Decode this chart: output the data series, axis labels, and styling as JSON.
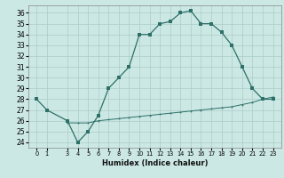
{
  "xlabel": "Humidex (Indice chaleur)",
  "bg_color": "#cce8e4",
  "line_color": "#2d7068",
  "grid_color": "#aaccc8",
  "upper_x": [
    0,
    1,
    3,
    4,
    5,
    6,
    7,
    8,
    9,
    10,
    11,
    12,
    13,
    14,
    15,
    16,
    17,
    18,
    19,
    20,
    21,
    22,
    23
  ],
  "upper_y": [
    28,
    27,
    26,
    24,
    25,
    26.5,
    29,
    30,
    31,
    34,
    34,
    35,
    35.2,
    36,
    36.2,
    35,
    35,
    34.2,
    33,
    31,
    29,
    28,
    28
  ],
  "lower_x": [
    3,
    4,
    5,
    6,
    7,
    8,
    9,
    10,
    11,
    12,
    13,
    14,
    15,
    16,
    17,
    18,
    19,
    20,
    21,
    22,
    23
  ],
  "lower_y": [
    25.8,
    25.8,
    25.8,
    26.0,
    26.1,
    26.2,
    26.3,
    26.4,
    26.5,
    26.6,
    26.7,
    26.8,
    26.9,
    27.0,
    27.1,
    27.2,
    27.3,
    27.5,
    27.7,
    28.0,
    28.2
  ],
  "ylim": [
    23.5,
    36.7
  ],
  "yticks": [
    24,
    25,
    26,
    27,
    28,
    29,
    30,
    31,
    32,
    33,
    34,
    35,
    36
  ],
  "xlim": [
    -0.8,
    23.8
  ],
  "xticks": [
    0,
    1,
    3,
    4,
    5,
    6,
    7,
    8,
    9,
    10,
    11,
    12,
    13,
    14,
    15,
    16,
    17,
    18,
    19,
    20,
    21,
    22,
    23
  ]
}
